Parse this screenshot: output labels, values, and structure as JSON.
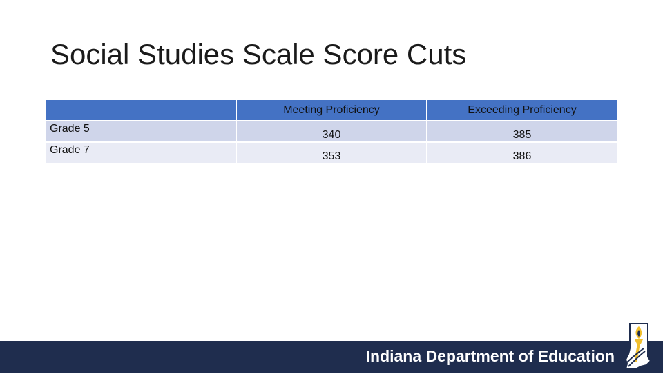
{
  "title": "Social Studies Scale Score Cuts",
  "table": {
    "columns": [
      "",
      "Meeting Proficiency",
      "Exceeding Proficiency"
    ],
    "rows": [
      {
        "label": "Grade 5",
        "values": [
          "340",
          "385"
        ]
      },
      {
        "label": "Grade 7",
        "values": [
          "353",
          "386"
        ]
      }
    ]
  },
  "footer": {
    "org_name": "Indiana Department of Education",
    "logo_icon": "indiana-torch-icon"
  },
  "colors": {
    "header_fill": "#4472c4",
    "row_odd": "#cfd5ea",
    "row_even": "#e9ebf5",
    "footer_band": "#1f2d4e",
    "logo_gold": "#f2c02e"
  }
}
